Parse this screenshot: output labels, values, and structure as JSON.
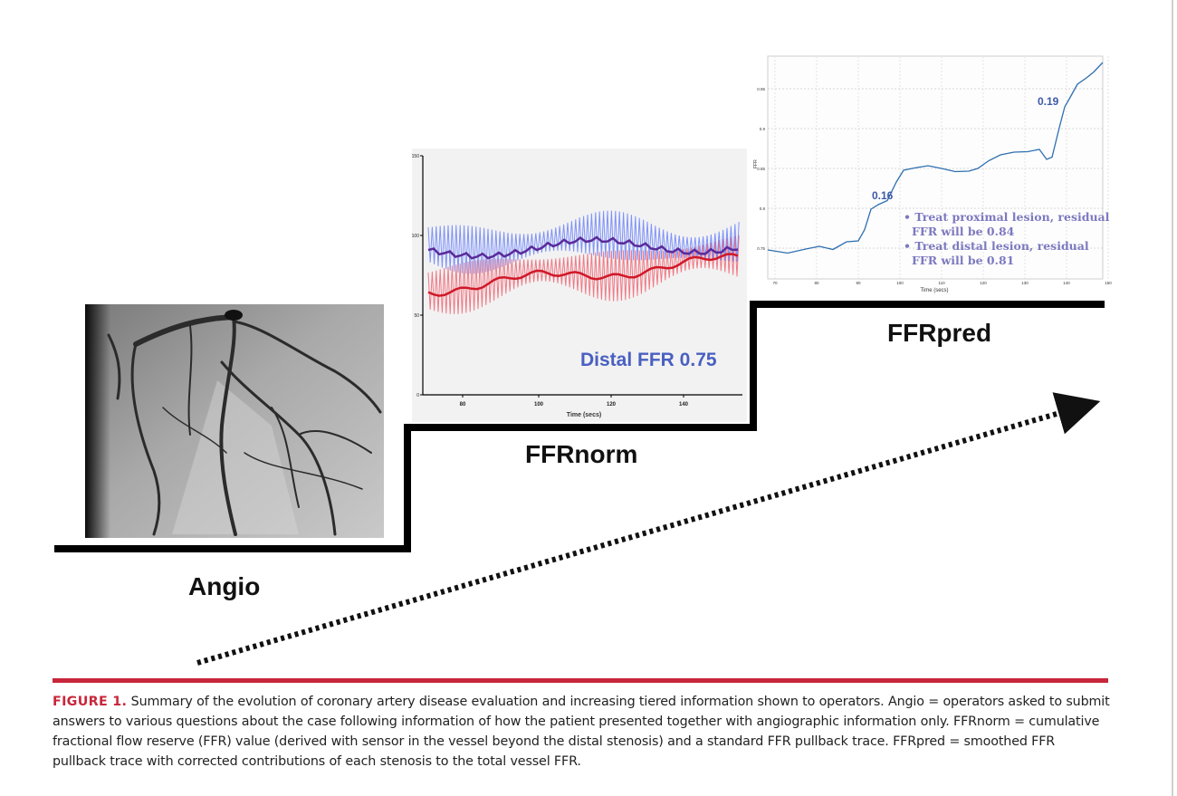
{
  "stages": {
    "angio": "Angio",
    "ffrnorm": "FFRnorm",
    "ffrpred": "FFRpred"
  },
  "ffrnorm_panel": {
    "annotation": "Distal FFR 0.75",
    "x_label": "Time (secs)",
    "x_ticks": [
      "80",
      "100",
      "120",
      "140"
    ],
    "y_ticks": [
      "150",
      "100",
      "50",
      "0"
    ]
  },
  "ffrpred_panel": {
    "y_label": "FFR",
    "x_label": "Time (secs)",
    "y_ticks": [
      "0.95",
      "0.9",
      "0.85",
      "0.8",
      "0.75"
    ],
    "x_ticks": [
      "70",
      "80",
      "90",
      "100",
      "110",
      "120",
      "130",
      "140",
      "150"
    ],
    "step_label_1": "0.16",
    "step_label_2": "0.19",
    "notes": [
      {
        "line1": "• Treat proximal lesion, residual",
        "line2": "FFR will be 0.84"
      },
      {
        "line1": "• Treat distal lesion, residual",
        "line2": "FFR will be 0.81"
      }
    ]
  },
  "caption": {
    "label": "FIGURE 1.",
    "text": " Summary of the evolution of coronary artery disease evaluation and increasing tiered information shown to operators. Angio = operators asked to submit answers to various questions about the case following information of how the patient presented together with angiographic information only. FFRnorm = cumulative fractional flow reserve (FFR) value (derived with sensor in the vessel beyond the distal stenosis) and a standard FFR pullback trace. FFRpred = smoothed FFR pullback trace with corrected contributions of each stenosis to the total vessel FFR."
  },
  "colors": {
    "accent_red": "#c8263a",
    "ffr_blue": "#4a60c0",
    "note_purple": "#7c79c0",
    "trace_blue": "#2f6fb0"
  }
}
